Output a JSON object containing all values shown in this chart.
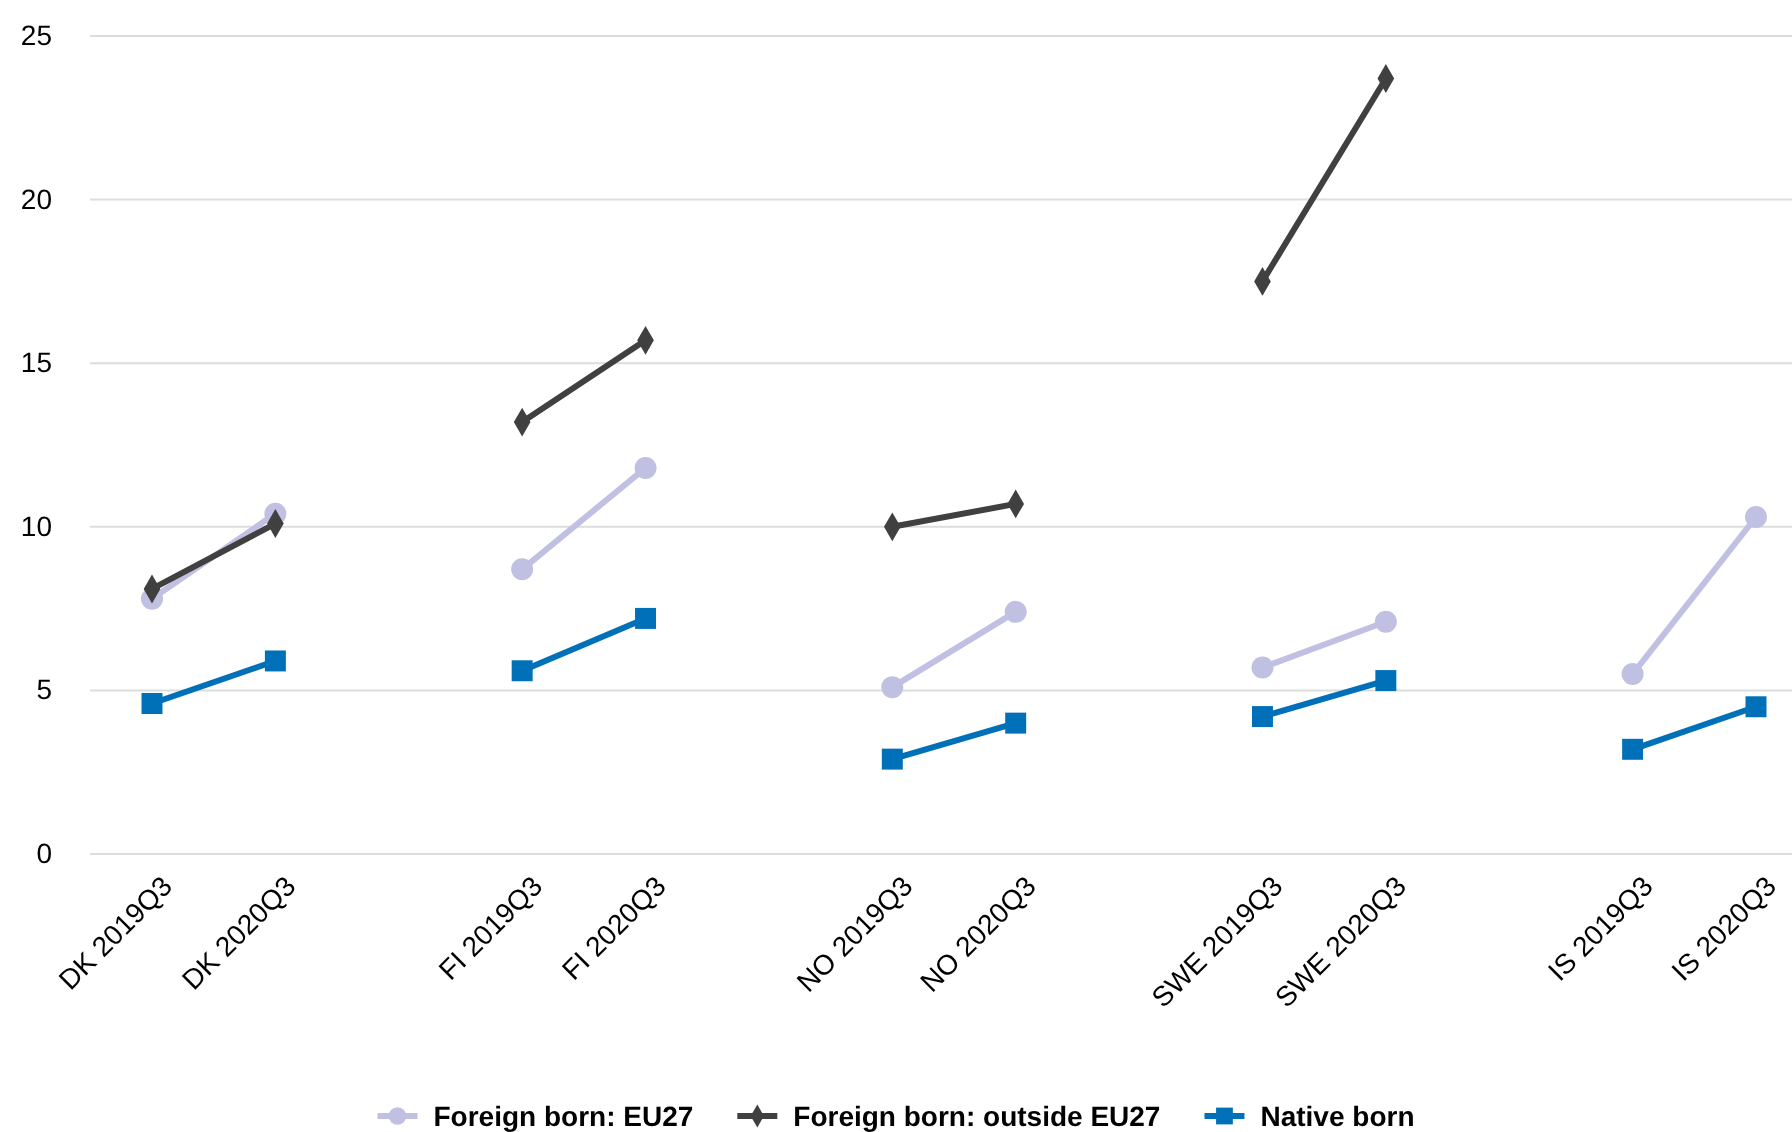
{
  "chart_data": {
    "type": "line",
    "categories": [
      "DK 2019Q3",
      "DK 2020Q3",
      null,
      "FI 2019Q3",
      "FI 2020Q3",
      null,
      "NO 2019Q3",
      "NO 2020Q3",
      null,
      "SWE 2019Q3",
      "SWE 2020Q3",
      null,
      "IS 2019Q3",
      "IS 2020Q3"
    ],
    "series": [
      {
        "name": "Foreign born: EU27",
        "color": "#c0c0e3",
        "marker": "circle",
        "values": [
          7.8,
          10.4,
          null,
          8.7,
          11.8,
          null,
          5.1,
          7.4,
          null,
          5.7,
          7.1,
          null,
          5.5,
          10.3
        ]
      },
      {
        "name": "Foreign born: outside EU27",
        "color": "#404040",
        "marker": "diamond",
        "values": [
          8.1,
          10.1,
          null,
          13.2,
          15.7,
          null,
          10.0,
          10.7,
          null,
          17.5,
          23.7,
          null,
          null,
          null
        ]
      },
      {
        "name": "Native born",
        "color": "#0070b8",
        "marker": "square",
        "values": [
          4.6,
          5.9,
          null,
          5.6,
          7.2,
          null,
          2.9,
          4.0,
          null,
          4.2,
          5.3,
          null,
          3.2,
          4.5
        ]
      }
    ],
    "ylim": [
      0,
      25
    ],
    "yticks": [
      0,
      5,
      10,
      15,
      20,
      25
    ],
    "grid": "y",
    "legend": "bottom"
  }
}
